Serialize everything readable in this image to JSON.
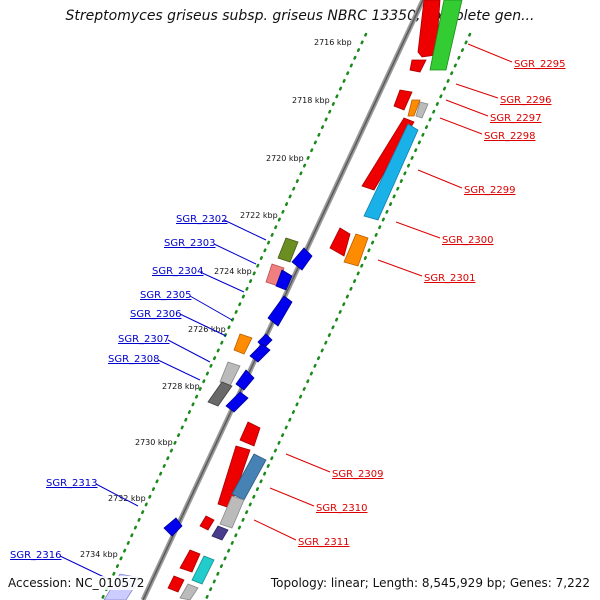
{
  "title": "Streptomyces griseus subsp. griseus NBRC 13350, complete gen...",
  "footer": {
    "accession": "Accession: NC_010572",
    "summary": "Topology: linear; Length: 8,545,929 bp; Genes: 7,222"
  },
  "ticks": [
    "2716 kbp",
    "2718 kbp",
    "2720 kbp",
    "2722 kbp",
    "2724 kbp",
    "2726 kbp",
    "2728 kbp",
    "2730 kbp",
    "2732 kbp",
    "2734 kbp"
  ],
  "colors": {
    "backbone": "#808080",
    "forward_label": "#dd0000",
    "reverse_label": "#0000cc",
    "tick": "#1a8a1a"
  },
  "forward_genes": [
    {
      "name": "SGR_2295",
      "color": "#ee0000"
    },
    {
      "name": "SGR_2296",
      "color": "#ee0000"
    },
    {
      "name": "SGR_2297",
      "color": "#ff8c00"
    },
    {
      "name": "SGR_2298",
      "color": "#bbbbbb"
    },
    {
      "name": "SGR_2299",
      "color": "#ee0000"
    },
    {
      "name": "SGR_2300",
      "color": "#1ab0e8"
    },
    {
      "name": "SGR_2301",
      "color": "#ff8c00"
    },
    {
      "name": "SGR_2309",
      "color": "#ee0000"
    },
    {
      "name": "SGR_2310",
      "color": "#4682b4"
    },
    {
      "name": "SGR_2311",
      "color": "#483d8b"
    }
  ],
  "reverse_genes": [
    {
      "name": "SGR_2302",
      "color": "#6b8e23"
    },
    {
      "name": "SGR_2303",
      "color": "#0000ee"
    },
    {
      "name": "SGR_2304",
      "color": "#f08080"
    },
    {
      "name": "SGR_2305",
      "color": "#0000ee"
    },
    {
      "name": "SGR_2306",
      "color": "#0000ee"
    },
    {
      "name": "SGR_2307",
      "color": "#ff8c00"
    },
    {
      "name": "SGR_2308",
      "color": "#bbbbbb"
    },
    {
      "name": "SGR_2313",
      "color": "#0000ee"
    },
    {
      "name": "SGR_2316",
      "color": "#ccccff"
    }
  ]
}
